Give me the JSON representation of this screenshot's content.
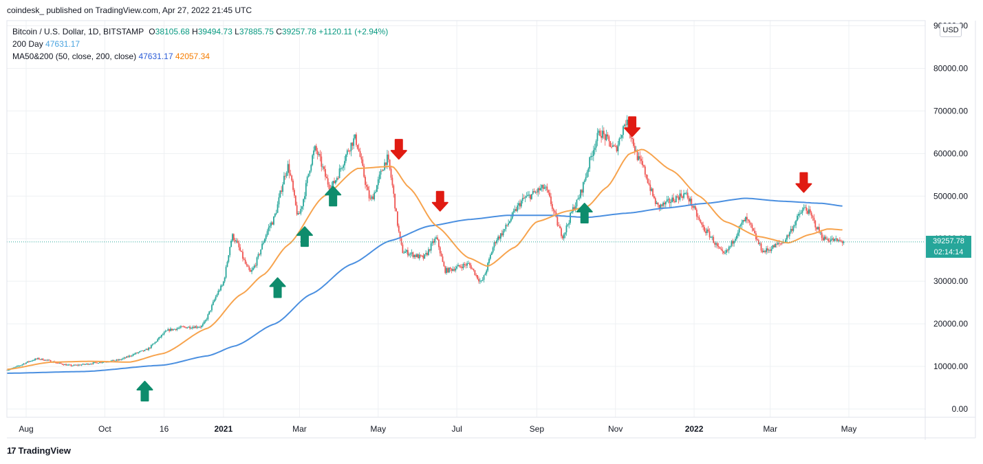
{
  "header": {
    "published": "coindesk_ published on TradingView.com, Apr 27, 2022 21:45 UTC"
  },
  "legend": {
    "symbol": "Bitcoin / U.S. Dollar, 1D, BITSTAMP",
    "open_label": "O",
    "open": "38105.68",
    "high_label": "H",
    "high": "39494.73",
    "low_label": "L",
    "low": "37885.75",
    "close_label": "C",
    "close": "39257.78",
    "change": "+1120.11 (+2.94%)",
    "ma200_label": "200 Day",
    "ma200_value": "47631.17",
    "ma_pair_label": "MA50&200 (50, close, 200, close)",
    "ma_pair_a": "47631.17",
    "ma_pair_b": "42057.34"
  },
  "currency_button": "USD",
  "last_price": {
    "price": "39257.78",
    "countdown": "02:14:14"
  },
  "footer": {
    "brand": "TradingView",
    "logo_text": "17"
  },
  "colors": {
    "up": "#26a69a",
    "down": "#ef5350",
    "ma50": "#f7a34d",
    "ma200": "#4a8fe0",
    "up_arrow": "#0e8c6c",
    "down_arrow": "#e01b12",
    "grid": "#eef0f3"
  },
  "chart_data": {
    "type": "candlestick",
    "title": "Bitcoin / U.S. Dollar, 1D, BITSTAMP",
    "y_ticks": [
      "0.00",
      "10000.00",
      "20000.00",
      "30000.00",
      "40000.00",
      "50000.00",
      "60000.00",
      "70000.00",
      "80000.00",
      "90000.00"
    ],
    "ylim": [
      0,
      90000
    ],
    "x_ticks": [
      "Aug",
      "Oct",
      "16",
      "2021",
      "Mar",
      "May",
      "Jul",
      "Sep",
      "Nov",
      "2022",
      "Mar",
      "May"
    ],
    "x_tick_dates": [
      "2020-08-01",
      "2020-10-01",
      "2020-11-16",
      "2021-01-01",
      "2021-03-01",
      "2021-05-01",
      "2021-07-01",
      "2021-09-01",
      "2021-11-01",
      "2022-01-01",
      "2022-03-01",
      "2022-05-01"
    ],
    "xlim": [
      "2020-07-17",
      "2022-06-05"
    ],
    "grid": true,
    "close_series_anchors": [
      [
        "2020-07-17",
        9200
      ],
      [
        "2020-08-10",
        11800
      ],
      [
        "2020-09-05",
        10200
      ],
      [
        "2020-10-10",
        11400
      ],
      [
        "2020-11-01",
        13700
      ],
      [
        "2020-11-20",
        18600
      ],
      [
        "2020-12-01",
        19200
      ],
      [
        "2020-12-15",
        19400
      ],
      [
        "2020-12-31",
        28900
      ],
      [
        "2021-01-08",
        40600
      ],
      [
        "2021-01-22",
        32000
      ],
      [
        "2021-02-08",
        44000
      ],
      [
        "2021-02-20",
        57000
      ],
      [
        "2021-02-28",
        45200
      ],
      [
        "2021-03-13",
        61000
      ],
      [
        "2021-03-25",
        52000
      ],
      [
        "2021-04-13",
        63500
      ],
      [
        "2021-04-25",
        49000
      ],
      [
        "2021-05-08",
        58800
      ],
      [
        "2021-05-20",
        37000
      ],
      [
        "2021-06-05",
        35500
      ],
      [
        "2021-06-15",
        40000
      ],
      [
        "2021-06-22",
        32500
      ],
      [
        "2021-07-10",
        34000
      ],
      [
        "2021-07-20",
        29800
      ],
      [
        "2021-08-01",
        40000
      ],
      [
        "2021-08-23",
        49600
      ],
      [
        "2021-09-07",
        52000
      ],
      [
        "2021-09-21",
        40800
      ],
      [
        "2021-10-01",
        48000
      ],
      [
        "2021-10-20",
        65000
      ],
      [
        "2021-11-01",
        61000
      ],
      [
        "2021-11-09",
        67500
      ],
      [
        "2021-11-20",
        58000
      ],
      [
        "2021-12-04",
        47500
      ],
      [
        "2021-12-25",
        50500
      ],
      [
        "2022-01-10",
        41800
      ],
      [
        "2022-01-24",
        36200
      ],
      [
        "2022-02-10",
        44500
      ],
      [
        "2022-02-24",
        37000
      ],
      [
        "2022-03-10",
        39000
      ],
      [
        "2022-03-28",
        47200
      ],
      [
        "2022-04-12",
        40000
      ],
      [
        "2022-04-27",
        39257
      ]
    ],
    "ma50_anchors": [
      [
        "2020-07-17",
        9300
      ],
      [
        "2020-08-20",
        11000
      ],
      [
        "2020-09-20",
        11200
      ],
      [
        "2020-10-20",
        11000
      ],
      [
        "2020-11-15",
        13000
      ],
      [
        "2020-12-20",
        19000
      ],
      [
        "2021-01-15",
        27000
      ],
      [
        "2021-02-01",
        31500
      ],
      [
        "2021-02-20",
        38500
      ],
      [
        "2021-03-20",
        50000
      ],
      [
        "2021-04-15",
        56500
      ],
      [
        "2021-05-12",
        57000
      ],
      [
        "2021-05-25",
        52000
      ],
      [
        "2021-06-15",
        43000
      ],
      [
        "2021-07-10",
        35500
      ],
      [
        "2021-07-25",
        33500
      ],
      [
        "2021-08-15",
        38000
      ],
      [
        "2021-09-01",
        44000
      ],
      [
        "2021-09-25",
        46500
      ],
      [
        "2021-10-10",
        47500
      ],
      [
        "2021-10-25",
        52000
      ],
      [
        "2021-11-12",
        60000
      ],
      [
        "2021-11-22",
        61000
      ],
      [
        "2021-12-15",
        56000
      ],
      [
        "2022-01-05",
        50000
      ],
      [
        "2022-01-25",
        44000
      ],
      [
        "2022-02-20",
        40500
      ],
      [
        "2022-03-15",
        39000
      ],
      [
        "2022-04-01",
        41000
      ],
      [
        "2022-04-15",
        42300
      ],
      [
        "2022-04-27",
        42057
      ]
    ],
    "ma200_anchors": [
      [
        "2020-07-17",
        8400
      ],
      [
        "2020-09-15",
        8800
      ],
      [
        "2020-11-15",
        10300
      ],
      [
        "2020-12-20",
        12500
      ],
      [
        "2021-01-10",
        14800
      ],
      [
        "2021-02-10",
        20000
      ],
      [
        "2021-03-10",
        27000
      ],
      [
        "2021-04-10",
        34000
      ],
      [
        "2021-05-10",
        39500
      ],
      [
        "2021-06-10",
        43000
      ],
      [
        "2021-07-10",
        44500
      ],
      [
        "2021-08-10",
        45500
      ],
      [
        "2021-09-10",
        45500
      ],
      [
        "2021-10-10",
        45000
      ],
      [
        "2021-11-10",
        46000
      ],
      [
        "2021-12-10",
        47200
      ],
      [
        "2022-01-10",
        48300
      ],
      [
        "2022-02-10",
        49500
      ],
      [
        "2022-03-10",
        48800
      ],
      [
        "2022-04-10",
        48300
      ],
      [
        "2022-04-27",
        47631
      ]
    ],
    "annotations": {
      "up_arrows": [
        [
          "2020-11-01",
          4200
        ],
        [
          "2021-02-12",
          28500
        ],
        [
          "2021-03-05",
          40500
        ],
        [
          "2021-03-27",
          50000
        ],
        [
          "2021-10-08",
          46000
        ]
      ],
      "down_arrows": [
        [
          "2021-05-17",
          61000
        ],
        [
          "2021-06-18",
          48800
        ],
        [
          "2021-11-14",
          66300
        ],
        [
          "2022-03-27",
          53200
        ]
      ]
    },
    "last_value": 39257.78
  }
}
